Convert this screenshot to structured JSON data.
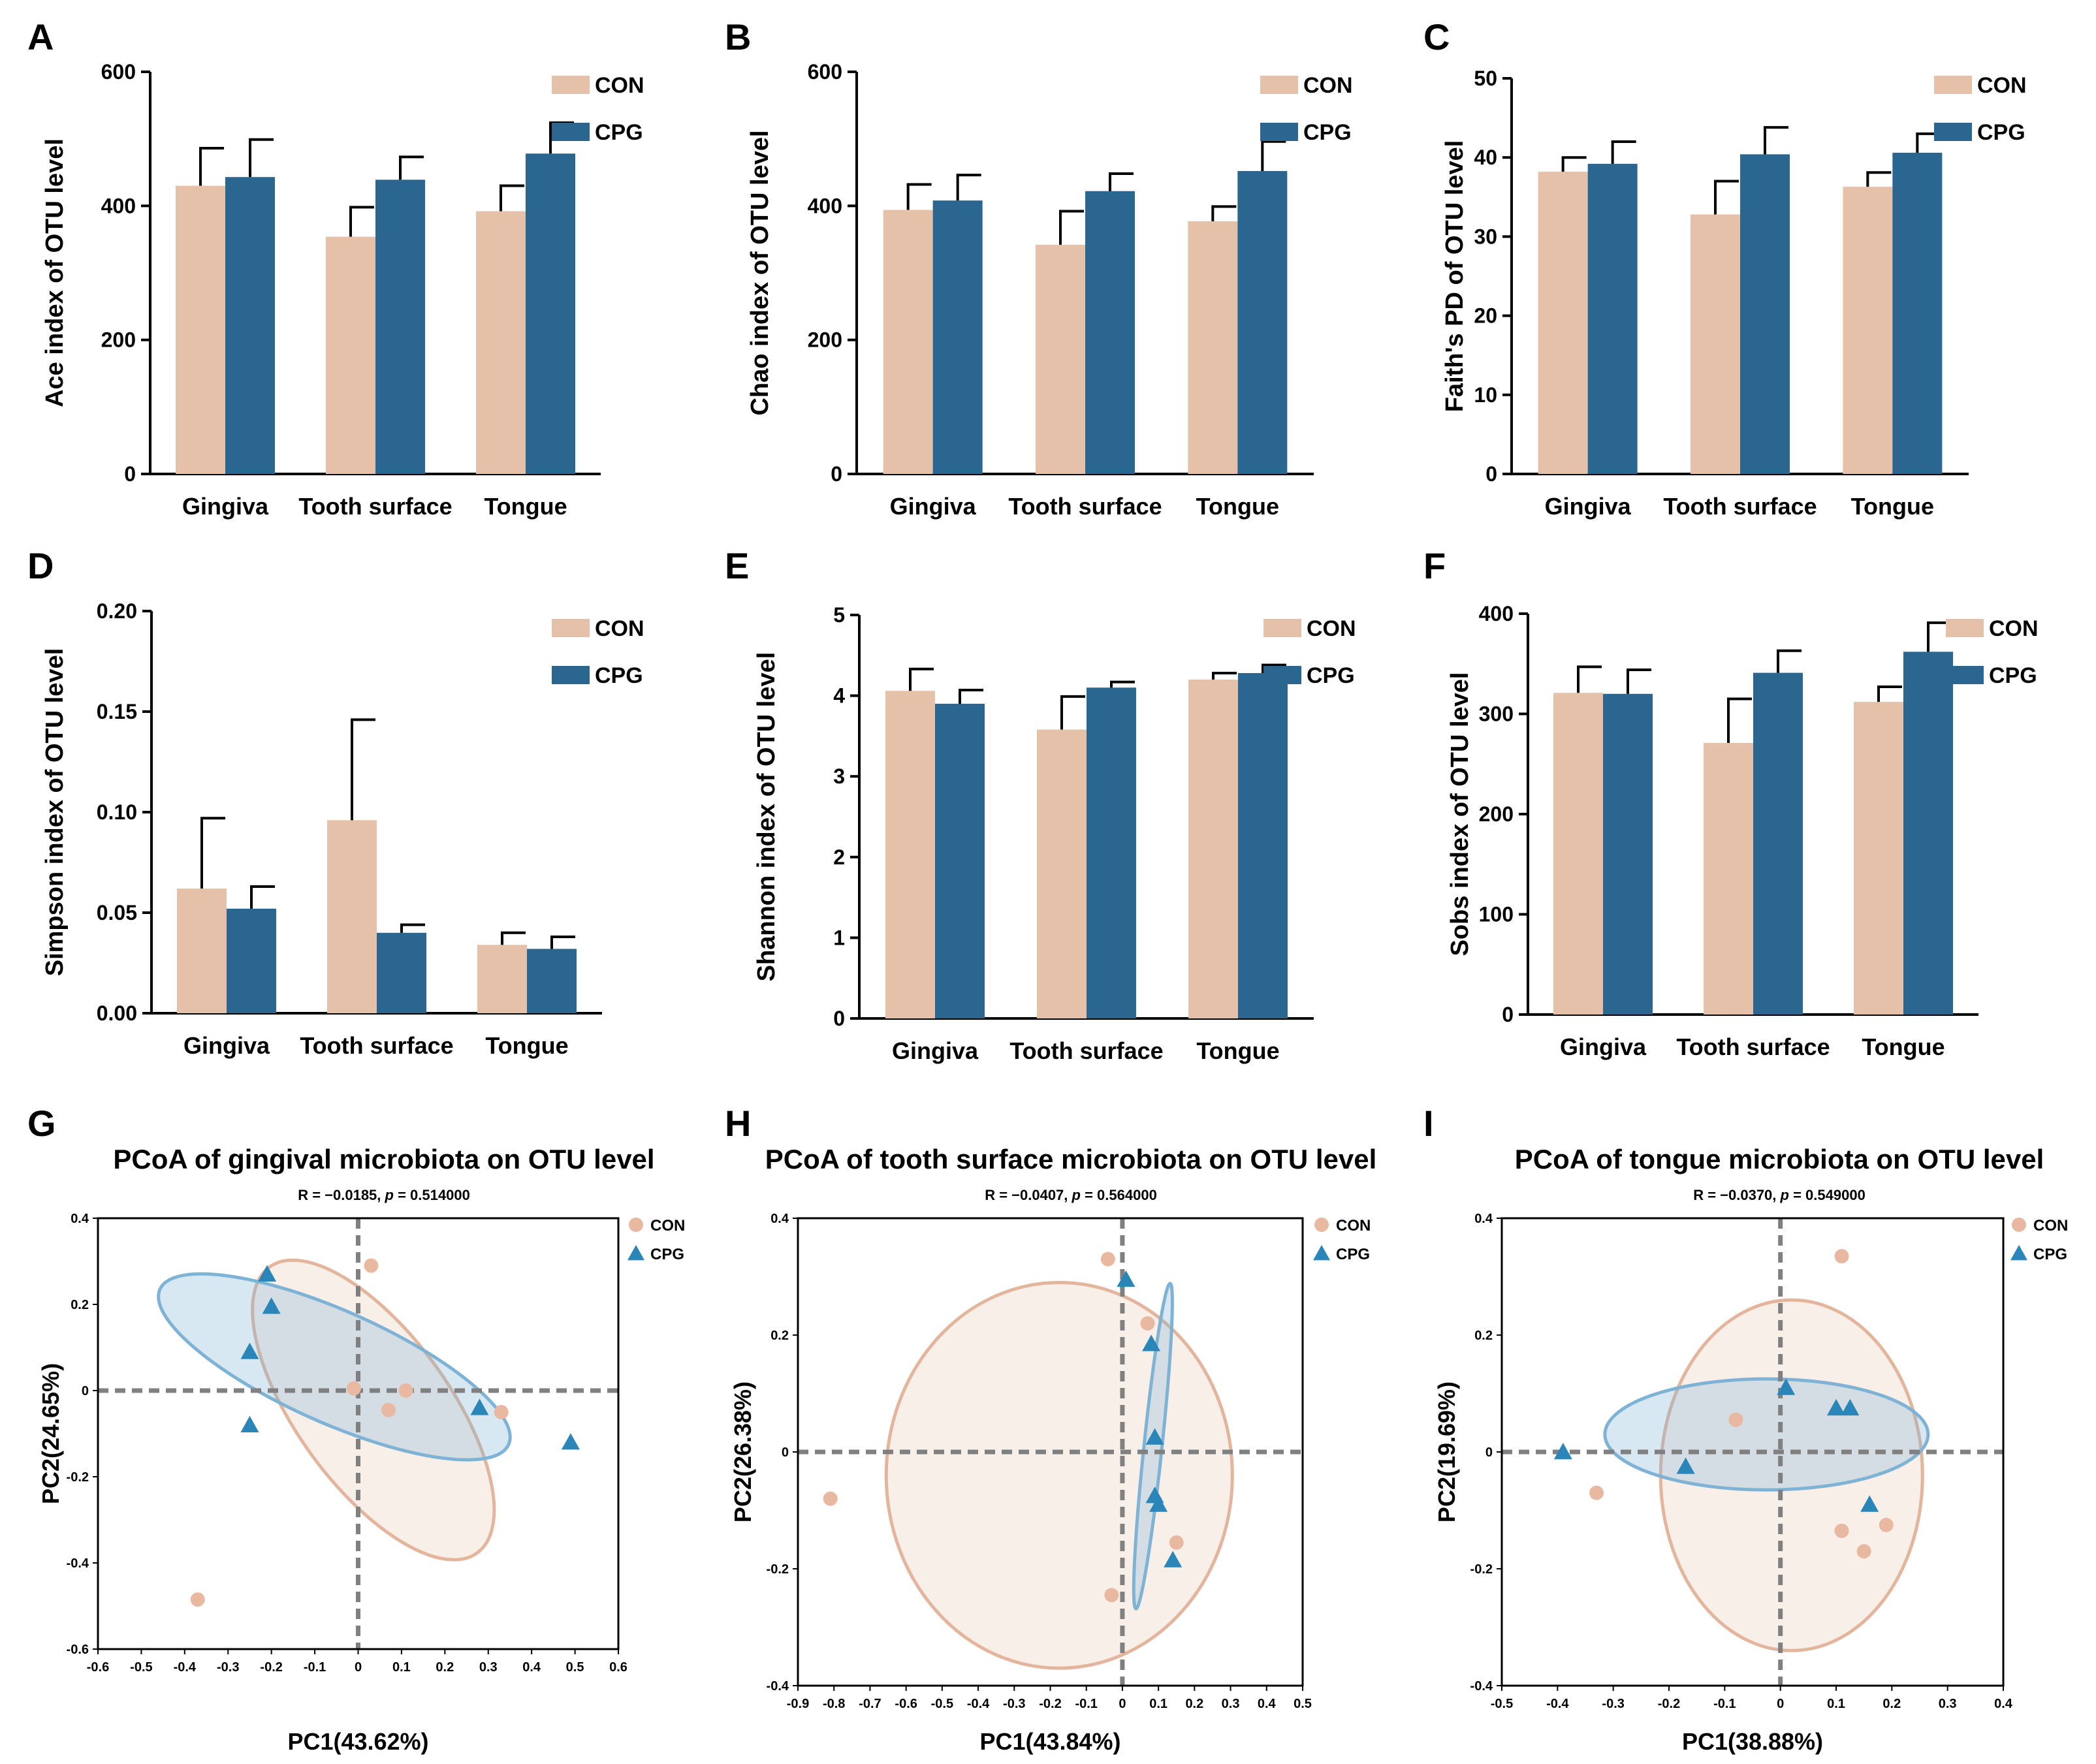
{
  "colors": {
    "con": "#e6c1aa",
    "cpg": "#2b6690",
    "con_pt": "#e8b9a0",
    "cpg_pt": "#2a86b8",
    "con_ell": "#e3b59c",
    "cpg_ell": "#7fb3d6",
    "grid_dash": "#808080"
  },
  "chart_data": [
    {
      "panel": "A",
      "type": "bar",
      "categories": [
        "Gingiva",
        "Tooth surface",
        "Tongue"
      ],
      "ylabel": "Ace index of OTU level",
      "ylim": [
        0,
        600
      ],
      "yticks": [
        0,
        200,
        400,
        600
      ],
      "ytick_labels": [
        "0",
        "200",
        "400",
        "600"
      ],
      "series": [
        {
          "name": "CON",
          "values": [
            430,
            354,
            392
          ],
          "errors": [
            56,
            44,
            38
          ]
        },
        {
          "name": "CPG",
          "values": [
            443,
            439,
            478
          ],
          "errors": [
            56,
            34,
            46
          ]
        }
      ]
    },
    {
      "panel": "B",
      "type": "bar",
      "categories": [
        "Gingiva",
        "Tooth surface",
        "Tongue"
      ],
      "ylabel": "Chao index of OTU level",
      "ylim": [
        0,
        600
      ],
      "yticks": [
        0,
        200,
        400,
        600
      ],
      "ytick_labels": [
        "0",
        "200",
        "400",
        "600"
      ],
      "series": [
        {
          "name": "CON",
          "values": [
            394,
            342,
            377
          ],
          "errors": [
            38,
            50,
            22
          ]
        },
        {
          "name": "CPG",
          "values": [
            408,
            422,
            452
          ],
          "errors": [
            38,
            26,
            44
          ]
        }
      ]
    },
    {
      "panel": "C",
      "type": "bar",
      "categories": [
        "Gingiva",
        "Tooth surface",
        "Tongue"
      ],
      "ylabel": "Faith's PD of OTU level",
      "ylim": [
        0,
        50
      ],
      "yticks": [
        0,
        10,
        20,
        30,
        40,
        50
      ],
      "ytick_labels": [
        "0",
        "10",
        "20",
        "30",
        "40",
        "50"
      ],
      "series": [
        {
          "name": "CON",
          "values": [
            38.2,
            32.8,
            36.3
          ],
          "errors": [
            1.8,
            4.2,
            1.8
          ]
        },
        {
          "name": "CPG",
          "values": [
            39.2,
            40.4,
            40.6
          ],
          "errors": [
            2.8,
            3.4,
            2.4
          ]
        }
      ]
    },
    {
      "panel": "D",
      "type": "bar",
      "categories": [
        "Gingiva",
        "Tooth surface",
        "Tongue"
      ],
      "ylabel": "Simpson index of OTU level",
      "ylim": [
        0,
        0.2
      ],
      "yticks": [
        0,
        0.05,
        0.1,
        0.15,
        0.2
      ],
      "ytick_labels": [
        "0.00",
        "0.05",
        "0.10",
        "0.15",
        "0.20"
      ],
      "series": [
        {
          "name": "CON",
          "values": [
            0.062,
            0.096,
            0.034
          ],
          "errors": [
            0.035,
            0.05,
            0.006
          ]
        },
        {
          "name": "CPG",
          "values": [
            0.052,
            0.04,
            0.032
          ],
          "errors": [
            0.011,
            0.004,
            0.006
          ]
        }
      ]
    },
    {
      "panel": "E",
      "type": "bar",
      "categories": [
        "Gingiva",
        "Tooth surface",
        "Tongue"
      ],
      "ylabel": "Shannon index of OTU level",
      "ylim": [
        0,
        5
      ],
      "yticks": [
        0,
        1,
        2,
        3,
        4,
        5
      ],
      "ytick_labels": [
        "0",
        "1",
        "2",
        "3",
        "4",
        "5"
      ],
      "series": [
        {
          "name": "CON",
          "values": [
            4.06,
            3.58,
            4.2
          ],
          "errors": [
            0.27,
            0.41,
            0.08
          ]
        },
        {
          "name": "CPG",
          "values": [
            3.9,
            4.1,
            4.28
          ],
          "errors": [
            0.17,
            0.07,
            0.1
          ]
        }
      ]
    },
    {
      "panel": "F",
      "type": "bar",
      "categories": [
        "Gingiva",
        "Tooth surface",
        "Tongue"
      ],
      "ylabel": "Sobs index of OTU level",
      "ylim": [
        0,
        400
      ],
      "yticks": [
        0,
        100,
        200,
        300,
        400
      ],
      "ytick_labels": [
        "0",
        "100",
        "200",
        "300",
        "400"
      ],
      "series": [
        {
          "name": "CON",
          "values": [
            321,
            271,
            312
          ],
          "errors": [
            26,
            44,
            15
          ]
        },
        {
          "name": "CPG",
          "values": [
            320,
            341,
            362
          ],
          "errors": [
            24,
            22,
            29
          ]
        }
      ]
    },
    {
      "panel": "G",
      "type": "scatter",
      "title": "PCoA of gingival microbiota on OTU level",
      "stat_left": "R = −0.0185, ",
      "stat_p": "p",
      "stat_right": " = 0.514000",
      "xlabel": "PC1(43.62%)",
      "ylabel": "PC2(24.65%)",
      "xlim": [
        -0.6,
        0.6
      ],
      "ylim": [
        -0.6,
        0.4
      ],
      "xticks": [
        -0.6,
        -0.5,
        -0.4,
        -0.3,
        -0.2,
        -0.1,
        0,
        0.1,
        0.2,
        0.3,
        0.4,
        0.5,
        0.6
      ],
      "xtick_labels": [
        "-0.6",
        "-0.5",
        "-0.4",
        "-0.3",
        "-0.2",
        "-0.1",
        "0",
        "0.1",
        "0.2",
        "0.3",
        "0.4",
        "0.5",
        "0.6"
      ],
      "yticks": [
        -0.6,
        -0.4,
        -0.2,
        0,
        0.2,
        0.4
      ],
      "ytick_labels": [
        "-0.6",
        "-0.4",
        "-0.2",
        "0",
        "0.2",
        "0.4"
      ],
      "series": [
        {
          "name": "CON",
          "points": [
            [
              0.03,
              0.29
            ],
            [
              -0.01,
              0.005
            ],
            [
              0.11,
              0.0
            ],
            [
              0.07,
              -0.045
            ],
            [
              0.33,
              -0.05
            ],
            [
              -0.37,
              -0.485
            ]
          ]
        },
        {
          "name": "CPG",
          "points": [
            [
              -0.21,
              0.27
            ],
            [
              -0.2,
              0.195
            ],
            [
              -0.25,
              0.09
            ],
            [
              -0.25,
              -0.08
            ],
            [
              0.28,
              -0.04
            ],
            [
              0.49,
              -0.12
            ]
          ]
        }
      ],
      "ellipses": [
        {
          "name": "CON",
          "center": [
            0.035,
            -0.045
          ],
          "rx": 0.176,
          "ry": 0.41,
          "angle_deg": 36
        },
        {
          "name": "CPG",
          "center": [
            -0.055,
            0.055
          ],
          "rx": 0.44,
          "ry": 0.13,
          "angle_deg": -24
        }
      ],
      "legend": [
        "CON",
        "CPG"
      ]
    },
    {
      "panel": "H",
      "type": "scatter",
      "title": "PCoA of tooth surface microbiota on OTU level",
      "stat_left": "R = −0.0407, ",
      "stat_p": "p",
      "stat_right": " = 0.564000",
      "xlabel": "PC1(43.84%)",
      "ylabel": "PC2(26.38%)",
      "xlim": [
        -0.9,
        0.5
      ],
      "ylim": [
        -0.4,
        0.4
      ],
      "xticks": [
        -0.9,
        -0.8,
        -0.7,
        -0.6,
        -0.5,
        -0.4,
        -0.3,
        -0.2,
        -0.1,
        0,
        0.1,
        0.2,
        0.3,
        0.4,
        0.5
      ],
      "xtick_labels": [
        "-0.9",
        "-0.8",
        "-0.7",
        "-0.6",
        "-0.5",
        "-0.4",
        "-0.3",
        "-0.2",
        "-0.1",
        "0",
        "0.1",
        "0.2",
        "0.3",
        "0.4",
        "0.5"
      ],
      "yticks": [
        -0.4,
        -0.2,
        0,
        0.2,
        0.4
      ],
      "ytick_labels": [
        "-0.4",
        "-0.2",
        "0",
        "0.2",
        "0.4"
      ],
      "series": [
        {
          "name": "CON",
          "points": [
            [
              -0.04,
              0.33
            ],
            [
              0.07,
              0.22
            ],
            [
              -0.81,
              -0.08
            ],
            [
              0.15,
              -0.155
            ],
            [
              -0.03,
              -0.245
            ]
          ]
        },
        {
          "name": "CPG",
          "points": [
            [
              0.01,
              0.295
            ],
            [
              0.08,
              0.185
            ],
            [
              0.09,
              0.025
            ],
            [
              0.09,
              -0.075
            ],
            [
              0.1,
              -0.09
            ],
            [
              0.14,
              -0.185
            ]
          ]
        }
      ],
      "ellipses": [
        {
          "name": "CON",
          "center": [
            -0.175,
            -0.04
          ],
          "rx": 0.48,
          "ry": 0.33,
          "angle_deg": 0
        },
        {
          "name": "CPG",
          "center": [
            0.085,
            0.01
          ],
          "rx": 0.025,
          "ry": 0.28,
          "angle_deg": -6
        }
      ],
      "legend": [
        "CON",
        "CPG"
      ]
    },
    {
      "panel": "I",
      "type": "scatter",
      "title": "PCoA of tongue microbiota on OTU level",
      "stat_left": "R = −0.0370, ",
      "stat_p": "p",
      "stat_right": " = 0.549000",
      "xlabel": "PC1(38.88%)",
      "ylabel": "PC2(19.69%)",
      "xlim": [
        -0.5,
        0.4
      ],
      "ylim": [
        -0.4,
        0.4
      ],
      "xticks": [
        -0.5,
        -0.4,
        -0.3,
        -0.2,
        -0.1,
        0,
        0.1,
        0.2,
        0.3,
        0.4
      ],
      "xtick_labels": [
        "-0.5",
        "-0.4",
        "-0.3",
        "-0.2",
        "-0.1",
        "0",
        "0.1",
        "0.2",
        "0.3",
        "0.4"
      ],
      "yticks": [
        -0.4,
        -0.2,
        0,
        0.2,
        0.4
      ],
      "ytick_labels": [
        "-0.4",
        "-0.2",
        "0",
        "0.2",
        "0.4"
      ],
      "series": [
        {
          "name": "CON",
          "points": [
            [
              0.11,
              0.335
            ],
            [
              -0.08,
              0.055
            ],
            [
              -0.33,
              -0.07
            ],
            [
              0.11,
              -0.135
            ],
            [
              0.19,
              -0.125
            ],
            [
              0.15,
              -0.17
            ]
          ]
        },
        {
          "name": "CPG",
          "points": [
            [
              0.01,
              0.11
            ],
            [
              0.1,
              0.075
            ],
            [
              0.125,
              0.075
            ],
            [
              -0.39,
              0.0
            ],
            [
              -0.17,
              -0.025
            ],
            [
              0.16,
              -0.09
            ]
          ]
        }
      ],
      "ellipses": [
        {
          "name": "CON",
          "center": [
            0.02,
            -0.04
          ],
          "rx": 0.235,
          "ry": 0.3,
          "angle_deg": 0
        },
        {
          "name": "CPG",
          "center": [
            -0.025,
            0.03
          ],
          "rx": 0.29,
          "ry": 0.095,
          "angle_deg": 0
        }
      ],
      "legend": [
        "CON",
        "CPG"
      ]
    }
  ]
}
